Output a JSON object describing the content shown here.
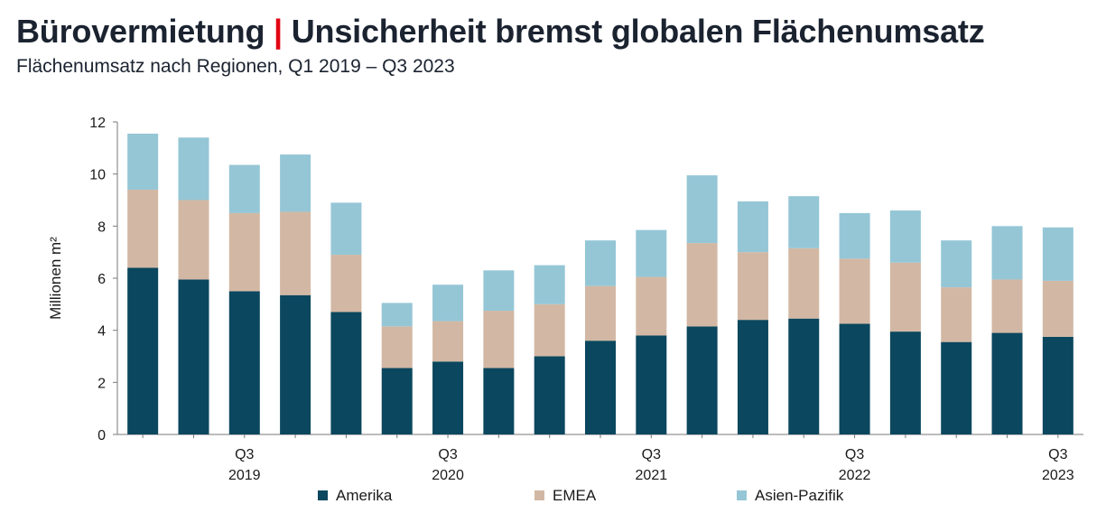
{
  "header": {
    "title_part1": "Bürovermietung",
    "separator": "|",
    "title_part2": "Unsicherheit bremst globalen Flächenumsatz",
    "subtitle": "Flächenumsatz nach Regionen, Q1 2019 – Q3 2023"
  },
  "colors": {
    "separator": "#e30613",
    "Amerika": "#0b475e",
    "EMEA": "#d2b8a4",
    "Asien-Pazifik": "#95c6d6",
    "axis": "#7a7a7a"
  },
  "chart_data": {
    "type": "bar",
    "stacked": true,
    "categories": [
      "Q1 2019",
      "Q2 2019",
      "Q3 2019",
      "Q4 2019",
      "Q1 2020",
      "Q2 2020",
      "Q3 2020",
      "Q4 2020",
      "Q1 2021",
      "Q2 2021",
      "Q3 2021",
      "Q4 2021",
      "Q1 2022",
      "Q2 2022",
      "Q3 2022",
      "Q4 2022",
      "Q1 2023",
      "Q2 2023",
      "Q3 2023"
    ],
    "x_tick_labels": [
      {
        "index": 2,
        "line1": "Q3",
        "line2": "2019"
      },
      {
        "index": 6,
        "line1": "Q3",
        "line2": "2020"
      },
      {
        "index": 10,
        "line1": "Q3",
        "line2": "2021"
      },
      {
        "index": 14,
        "line1": "Q3",
        "line2": "2022"
      },
      {
        "index": 18,
        "line1": "Q3",
        "line2": "2023"
      }
    ],
    "series": [
      {
        "name": "Amerika",
        "values": [
          6.4,
          5.95,
          5.5,
          5.35,
          4.7,
          2.55,
          2.8,
          2.55,
          3.0,
          3.6,
          3.8,
          4.15,
          4.4,
          4.45,
          4.25,
          3.95,
          3.55,
          3.9,
          3.75
        ]
      },
      {
        "name": "EMEA",
        "values": [
          3.0,
          3.05,
          3.0,
          3.2,
          2.2,
          1.6,
          1.55,
          2.2,
          2.0,
          2.1,
          2.25,
          3.2,
          2.6,
          2.7,
          2.5,
          2.65,
          2.1,
          2.05,
          2.15
        ]
      },
      {
        "name": "Asien-Pazifik",
        "values": [
          2.15,
          2.4,
          1.85,
          2.2,
          2.0,
          0.9,
          1.4,
          1.55,
          1.5,
          1.75,
          1.8,
          2.6,
          1.95,
          2.0,
          1.75,
          2.0,
          1.8,
          2.05,
          2.05
        ]
      }
    ],
    "ylabel": "Millionen m²",
    "ylim": [
      0,
      12
    ],
    "yticks": [
      0,
      2,
      4,
      6,
      8,
      10,
      12
    ],
    "grid": false,
    "legend": "bottom"
  }
}
